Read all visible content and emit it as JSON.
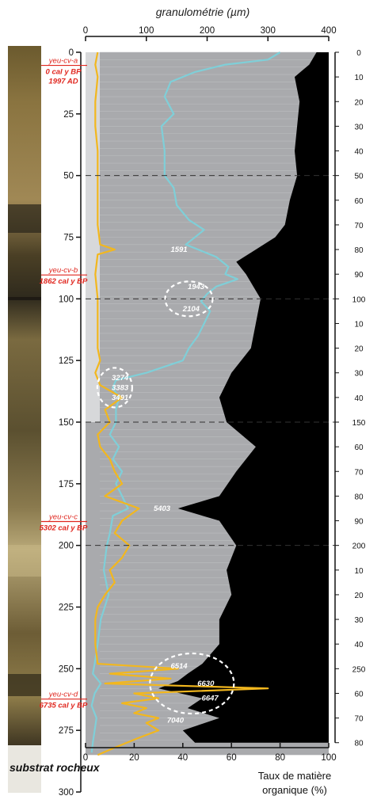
{
  "chart_data": {
    "type": "line",
    "title": "granulométrie (µm)",
    "top_axis": {
      "label": "granulométrie (µm)",
      "range": [
        0,
        400
      ],
      "ticks": [
        0,
        100,
        200,
        300,
        400
      ]
    },
    "bottom_axis": {
      "label_line1": "Taux de matière",
      "label_line2": "organique (%)",
      "range": [
        0,
        100
      ],
      "ticks": [
        0,
        20,
        40,
        60,
        80,
        100
      ]
    },
    "depth_axis": {
      "range": [
        0,
        300
      ],
      "ticks": [
        0,
        25,
        50,
        75,
        100,
        125,
        150,
        175,
        200,
        225,
        250,
        275,
        300
      ],
      "dashed_lines": [
        50,
        100,
        150,
        200
      ]
    },
    "right_scale": {
      "labels": [
        "0",
        "10",
        "20",
        "30",
        "40",
        "50",
        "60",
        "70",
        "80",
        "90",
        "100",
        "10",
        "20",
        "30",
        "40",
        "150",
        "60",
        "70",
        "80",
        "90",
        "200",
        "10",
        "20",
        "30",
        "40",
        "250",
        "60",
        "70",
        "80"
      ],
      "depths": [
        0,
        10,
        20,
        30,
        40,
        50,
        60,
        70,
        80,
        90,
        100,
        110,
        120,
        130,
        140,
        150,
        160,
        170,
        180,
        190,
        200,
        210,
        220,
        230,
        240,
        250,
        260,
        270,
        280
      ]
    },
    "samples": [
      {
        "id": "yeu-cv-a",
        "line2": "0 cal y BP",
        "line3": "1997 AD",
        "depth": 5
      },
      {
        "id": "yeu-cv-b",
        "line2": "1862 cal y BP",
        "depth": 90
      },
      {
        "id": "yeu-cv-c",
        "line2": "5302 cal y BP",
        "depth": 190
      },
      {
        "id": "yeu-cv-d",
        "line2": "6735 cal y BP",
        "depth": 262
      }
    ],
    "date_labels": [
      {
        "text": "1591",
        "depth": 80,
        "x_gran": 140
      },
      {
        "text": "1943",
        "depth": 95,
        "x_gran": 168
      },
      {
        "text": "2104",
        "depth": 104,
        "x_gran": 160
      },
      {
        "text": "3274",
        "depth": 132,
        "x_gran": 43
      },
      {
        "text": "3383",
        "depth": 136,
        "x_gran": 43
      },
      {
        "text": "3491",
        "depth": 140,
        "x_gran": 43
      },
      {
        "text": "5403",
        "depth": 185,
        "x_gran": 112
      },
      {
        "text": "6514",
        "depth": 249,
        "x_gran": 140
      },
      {
        "text": "6630",
        "depth": 256,
        "x_gran": 184
      },
      {
        "text": "6647",
        "depth": 262,
        "x_gran": 191
      },
      {
        "text": "7040",
        "depth": 271,
        "x_gran": 134
      }
    ],
    "bottom_label": "substrat rocheux",
    "series": [
      {
        "name": "",
        "color": "#7fcfd8",
        "depth": [
          0,
          3,
          5,
          8,
          12,
          18,
          25,
          30,
          40,
          50,
          55,
          62,
          68,
          72,
          78,
          83,
          87,
          90,
          92,
          95,
          98,
          101,
          105,
          110,
          115,
          120,
          125,
          130,
          133,
          136,
          140,
          145,
          150,
          155,
          160,
          165,
          170,
          175,
          180,
          185,
          188,
          195,
          200,
          210,
          220,
          230,
          240,
          248,
          252,
          256,
          260,
          265,
          270,
          275,
          280,
          284
        ],
        "values": [
          320,
          300,
          230,
          180,
          140,
          130,
          145,
          125,
          130,
          130,
          145,
          150,
          170,
          195,
          165,
          215,
          235,
          230,
          250,
          215,
          200,
          190,
          205,
          195,
          185,
          170,
          160,
          100,
          50,
          45,
          55,
          50,
          50,
          40,
          55,
          45,
          60,
          50,
          60,
          70,
          45,
          40,
          35,
          30,
          38,
          25,
          20,
          15,
          12,
          25,
          15,
          10,
          18,
          15,
          12,
          10
        ]
      },
      {
        "name": "",
        "color": "#f2b71e",
        "depth": [
          0,
          5,
          10,
          20,
          30,
          40,
          50,
          60,
          70,
          78,
          80,
          82,
          90,
          100,
          110,
          120,
          125,
          130,
          135,
          140,
          145,
          150,
          155,
          160,
          165,
          170,
          175,
          180,
          185,
          190,
          195,
          200,
          205,
          210,
          215,
          220,
          225,
          230,
          240,
          248,
          250,
          252,
          254,
          256,
          258,
          260,
          262,
          264,
          266,
          268,
          270,
          272,
          275,
          278,
          282,
          285
        ],
        "values": [
          5,
          4,
          5,
          4,
          4,
          5,
          5,
          5,
          5,
          6,
          12,
          5,
          4,
          5,
          5,
          5,
          6,
          4,
          6,
          15,
          8,
          10,
          5,
          6,
          10,
          12,
          15,
          8,
          22,
          15,
          12,
          18,
          15,
          10,
          12,
          8,
          5,
          4,
          4,
          5,
          38,
          10,
          35,
          8,
          75,
          20,
          30,
          15,
          25,
          20,
          30,
          25,
          30,
          22,
          12,
          5
        ]
      },
      {
        "name": "",
        "color": "#000000",
        "depth": [
          0,
          5,
          10,
          20,
          30,
          40,
          50,
          60,
          70,
          75,
          80,
          85,
          90,
          100,
          110,
          120,
          130,
          140,
          150,
          160,
          170,
          180,
          185,
          190,
          200,
          210,
          220,
          230,
          240,
          248,
          252,
          255,
          258,
          262,
          266,
          270,
          275,
          280
        ],
        "values": [
          95,
          92,
          86,
          88,
          87,
          86,
          87,
          84,
          82,
          78,
          70,
          62,
          66,
          72,
          70,
          68,
          60,
          55,
          58,
          70,
          62,
          55,
          38,
          55,
          62,
          58,
          60,
          55,
          55,
          48,
          42,
          38,
          30,
          48,
          42,
          55,
          40,
          45
        ]
      }
    ]
  }
}
